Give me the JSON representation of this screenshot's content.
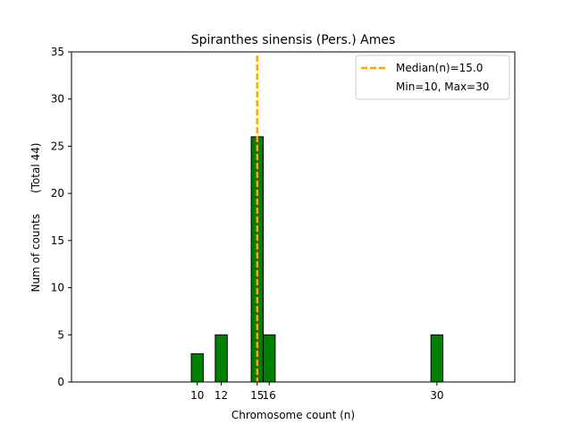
{
  "chart_data": {
    "type": "bar",
    "title": "Spiranthes sinensis (Pers.) Ames",
    "xlabel": "Chromosome count (n)",
    "ylabel": "Num of counts      (Total 44)",
    "x": [
      10,
      12,
      15,
      16,
      30
    ],
    "values": [
      3,
      5,
      26,
      5,
      5
    ],
    "xticks": [
      10,
      12,
      15,
      16,
      30
    ],
    "xtick_labels": [
      "10",
      "12",
      "15",
      "16",
      "30"
    ],
    "yticks": [
      0,
      5,
      10,
      15,
      20,
      25,
      30,
      35
    ],
    "ytick_labels": [
      "0",
      "5",
      "10",
      "15",
      "20",
      "25",
      "30",
      "35"
    ],
    "xlim": [
      -0.5,
      36.5
    ],
    "ylim": [
      0,
      35
    ],
    "bar_width": 1,
    "bar_color": "#008000",
    "median": 15.0,
    "median_color": "#FFA500",
    "legend": {
      "position": "top-right",
      "entries": [
        "Median(n)=15.0",
        "Min=10, Max=30"
      ]
    }
  }
}
